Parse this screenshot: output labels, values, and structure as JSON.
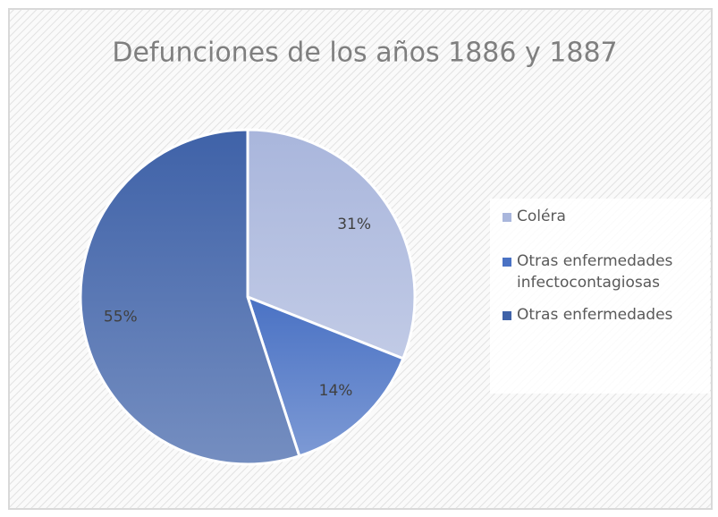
{
  "chart_data": {
    "type": "pie",
    "title": "Defunciones de los años 1886 y 1887",
    "categories": [
      "Coléra",
      "Otras enfermedades infectocontagiosas",
      "Otras enfermedades"
    ],
    "values": [
      31,
      14,
      55
    ],
    "value_labels": [
      "31%",
      "14%",
      "55%"
    ],
    "colors": [
      "#a9b6dc",
      "#4a72c4",
      "#3f62a8"
    ],
    "legend": "right"
  }
}
